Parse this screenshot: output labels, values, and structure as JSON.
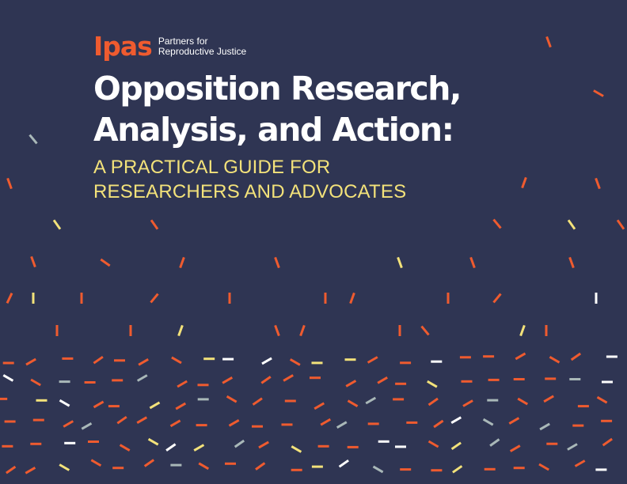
{
  "brand": {
    "name": "Ipas",
    "tagline_line1": "Partners for",
    "tagline_line2": "Reproductive Justice"
  },
  "title": {
    "line1": "Opposition Research,",
    "line2": "Analysis, and Action:"
  },
  "subtitle": {
    "line1": "A PRACTICAL GUIDE FOR",
    "line2": "RESEARCHERS AND ADVOCATES"
  },
  "colors": {
    "background": "#2f3553",
    "brand": "#ef5b2f",
    "subtitle": "#f3e27a",
    "confetti_orange": "#ef5b2f",
    "confetti_yellow": "#f3e27a",
    "confetti_white": "#ffffff",
    "confetti_gray": "#a9b8b8"
  }
}
